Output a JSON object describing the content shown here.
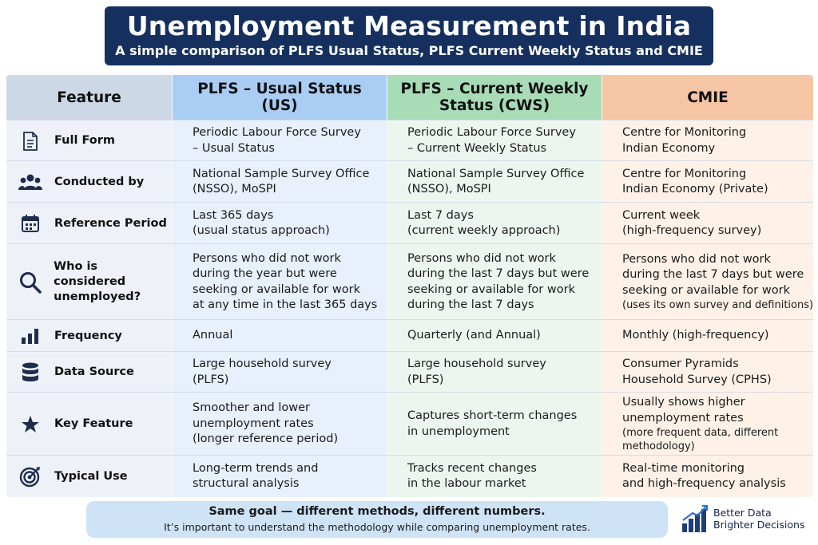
{
  "header": {
    "title": "Unemployment Measurement in India",
    "subtitle": "A simple comparison of PLFS Usual Status, PLFS Current Weekly Status and CMIE"
  },
  "columns": [
    {
      "label": "Feature",
      "color": "#cdd8e6"
    },
    {
      "label": "PLFS – Usual Status\n(US)",
      "color": "#a9cdf3"
    },
    {
      "label": "PLFS – Current Weekly\nStatus (CWS)",
      "color": "#a7dcb7"
    },
    {
      "label": "CMIE",
      "color": "#f6c6a4"
    }
  ],
  "body_colors": {
    "feature": "#eef2f8",
    "us": "#e7f0fb",
    "cws": "#ecf6ee",
    "cmie": "#fdf1e8"
  },
  "rows": [
    {
      "icon": "document-icon",
      "feature": "Full Form",
      "us": "Periodic Labour Force Survey\n– Usual Status",
      "cws": "Periodic Labour Force Survey\n– Current Weekly Status",
      "cmie": "Centre for Monitoring\nIndian Economy"
    },
    {
      "icon": "people-icon",
      "feature": "Conducted by",
      "us": "National Sample Survey Office\n(NSSO), MoSPI",
      "cws": "National Sample Survey Office\n(NSSO), MoSPI",
      "cmie": "Centre for Monitoring\nIndian Economy (Private)"
    },
    {
      "icon": "calendar-icon",
      "feature": "Reference Period",
      "us": "Last 365 days\n(usual status approach)",
      "cws": "Last 7 days\n(current weekly approach)",
      "cmie": "Current week\n(high-frequency survey)"
    },
    {
      "icon": "search-icon",
      "feature": "Who is considered\nunemployed?",
      "us": "Persons who did not work\nduring the year but were\nseeking or available for work\nat any time in the last 365 days",
      "cws": "Persons who did not work\nduring the last 7 days but were\nseeking or available for work\nduring the last 7 days",
      "cmie": "Persons who did not work\nduring the last 7 days but were\nseeking or available for work",
      "cmie_note": "(uses its own survey and definitions)"
    },
    {
      "icon": "bar-chart-icon",
      "feature": "Frequency",
      "us": "Annual",
      "cws": "Quarterly (and Annual)",
      "cmie": "Monthly (high-frequency)"
    },
    {
      "icon": "database-icon",
      "feature": "Data Source",
      "us": "Large household survey\n(PLFS)",
      "cws": "Large household survey\n(PLFS)",
      "cmie": "Consumer Pyramids\nHousehold Survey (CPHS)"
    },
    {
      "icon": "star-icon",
      "feature": "Key Feature",
      "us": "Smoother and lower\nunemployment rates\n(longer reference period)",
      "cws": "Captures short-term changes\nin unemployment",
      "cmie": "Usually shows higher\nunemployment rates",
      "cmie_note": "(more frequent data, different\nmethodology)"
    },
    {
      "icon": "target-icon",
      "feature": "Typical Use",
      "us": "Long-term trends and\nstructural analysis",
      "cws": "Tracks recent changes\nin the labour market",
      "cmie": "Real-time monitoring\nand high-frequency analysis"
    }
  ],
  "footer": {
    "headline": "Same goal — different methods, different numbers.",
    "note": "It’s important to understand the methodology while comparing unemployment rates."
  },
  "brand": {
    "line1": "Better Data",
    "line2": "Brighter Decisions",
    "icon": "rising-bars-icon"
  }
}
